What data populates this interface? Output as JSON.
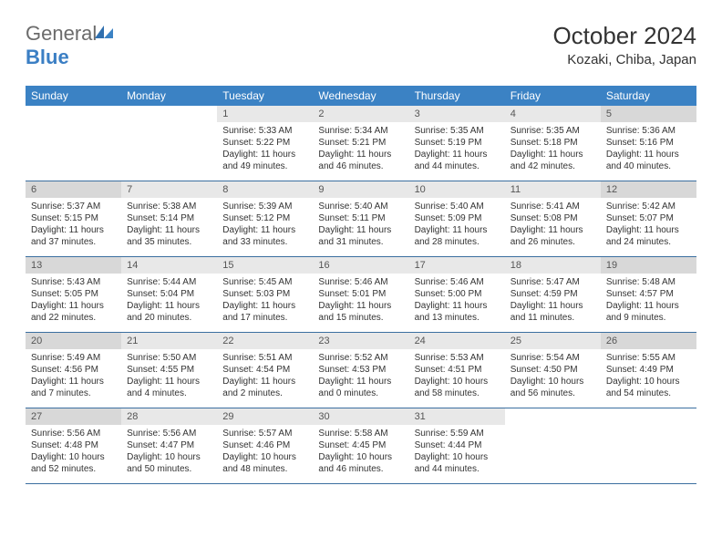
{
  "brand": {
    "part1": "General",
    "part2": "Blue"
  },
  "title": "October 2024",
  "location": "Kozaki, Chiba, Japan",
  "header_bg": "#3b82c4",
  "rule_color": "#3b6fa0",
  "daynum_bg": "#e8e8e8",
  "daynum_bg_alt": "#d8d8d8",
  "text_color": "#333333",
  "dow": [
    "Sunday",
    "Monday",
    "Tuesday",
    "Wednesday",
    "Thursday",
    "Friday",
    "Saturday"
  ],
  "weeks": [
    [
      null,
      null,
      {
        "n": "1",
        "sr": "5:33 AM",
        "ss": "5:22 PM",
        "dl": "11 hours and 49 minutes."
      },
      {
        "n": "2",
        "sr": "5:34 AM",
        "ss": "5:21 PM",
        "dl": "11 hours and 46 minutes."
      },
      {
        "n": "3",
        "sr": "5:35 AM",
        "ss": "5:19 PM",
        "dl": "11 hours and 44 minutes."
      },
      {
        "n": "4",
        "sr": "5:35 AM",
        "ss": "5:18 PM",
        "dl": "11 hours and 42 minutes."
      },
      {
        "n": "5",
        "sr": "5:36 AM",
        "ss": "5:16 PM",
        "dl": "11 hours and 40 minutes."
      }
    ],
    [
      {
        "n": "6",
        "sr": "5:37 AM",
        "ss": "5:15 PM",
        "dl": "11 hours and 37 minutes."
      },
      {
        "n": "7",
        "sr": "5:38 AM",
        "ss": "5:14 PM",
        "dl": "11 hours and 35 minutes."
      },
      {
        "n": "8",
        "sr": "5:39 AM",
        "ss": "5:12 PM",
        "dl": "11 hours and 33 minutes."
      },
      {
        "n": "9",
        "sr": "5:40 AM",
        "ss": "5:11 PM",
        "dl": "11 hours and 31 minutes."
      },
      {
        "n": "10",
        "sr": "5:40 AM",
        "ss": "5:09 PM",
        "dl": "11 hours and 28 minutes."
      },
      {
        "n": "11",
        "sr": "5:41 AM",
        "ss": "5:08 PM",
        "dl": "11 hours and 26 minutes."
      },
      {
        "n": "12",
        "sr": "5:42 AM",
        "ss": "5:07 PM",
        "dl": "11 hours and 24 minutes."
      }
    ],
    [
      {
        "n": "13",
        "sr": "5:43 AM",
        "ss": "5:05 PM",
        "dl": "11 hours and 22 minutes."
      },
      {
        "n": "14",
        "sr": "5:44 AM",
        "ss": "5:04 PM",
        "dl": "11 hours and 20 minutes."
      },
      {
        "n": "15",
        "sr": "5:45 AM",
        "ss": "5:03 PM",
        "dl": "11 hours and 17 minutes."
      },
      {
        "n": "16",
        "sr": "5:46 AM",
        "ss": "5:01 PM",
        "dl": "11 hours and 15 minutes."
      },
      {
        "n": "17",
        "sr": "5:46 AM",
        "ss": "5:00 PM",
        "dl": "11 hours and 13 minutes."
      },
      {
        "n": "18",
        "sr": "5:47 AM",
        "ss": "4:59 PM",
        "dl": "11 hours and 11 minutes."
      },
      {
        "n": "19",
        "sr": "5:48 AM",
        "ss": "4:57 PM",
        "dl": "11 hours and 9 minutes."
      }
    ],
    [
      {
        "n": "20",
        "sr": "5:49 AM",
        "ss": "4:56 PM",
        "dl": "11 hours and 7 minutes."
      },
      {
        "n": "21",
        "sr": "5:50 AM",
        "ss": "4:55 PM",
        "dl": "11 hours and 4 minutes."
      },
      {
        "n": "22",
        "sr": "5:51 AM",
        "ss": "4:54 PM",
        "dl": "11 hours and 2 minutes."
      },
      {
        "n": "23",
        "sr": "5:52 AM",
        "ss": "4:53 PM",
        "dl": "11 hours and 0 minutes."
      },
      {
        "n": "24",
        "sr": "5:53 AM",
        "ss": "4:51 PM",
        "dl": "10 hours and 58 minutes."
      },
      {
        "n": "25",
        "sr": "5:54 AM",
        "ss": "4:50 PM",
        "dl": "10 hours and 56 minutes."
      },
      {
        "n": "26",
        "sr": "5:55 AM",
        "ss": "4:49 PM",
        "dl": "10 hours and 54 minutes."
      }
    ],
    [
      {
        "n": "27",
        "sr": "5:56 AM",
        "ss": "4:48 PM",
        "dl": "10 hours and 52 minutes."
      },
      {
        "n": "28",
        "sr": "5:56 AM",
        "ss": "4:47 PM",
        "dl": "10 hours and 50 minutes."
      },
      {
        "n": "29",
        "sr": "5:57 AM",
        "ss": "4:46 PM",
        "dl": "10 hours and 48 minutes."
      },
      {
        "n": "30",
        "sr": "5:58 AM",
        "ss": "4:45 PM",
        "dl": "10 hours and 46 minutes."
      },
      {
        "n": "31",
        "sr": "5:59 AM",
        "ss": "4:44 PM",
        "dl": "10 hours and 44 minutes."
      },
      null,
      null
    ]
  ],
  "labels": {
    "sunrise": "Sunrise:",
    "sunset": "Sunset:",
    "daylight": "Daylight:"
  }
}
